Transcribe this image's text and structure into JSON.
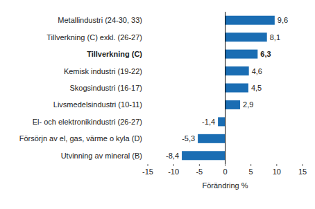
{
  "chart_data": {
    "type": "bar",
    "orientation": "horizontal",
    "x_label": "Förändring %",
    "categories": [
      "Metallindustri (24-30, 33)",
      "Tillverkning (C) exkl. (26-27)",
      "Tillverkning (C)",
      "Kemisk industri (19-22)",
      "Skogsindustri (16-17)",
      "Livsmedelsindustri (10-11)",
      "El- och elektronikindustri (26-27)",
      "Försörjn av el, gas, värme o kyla (D)",
      "Utvinning av mineral (B)"
    ],
    "values": [
      9.6,
      8.1,
      6.3,
      4.6,
      4.5,
      2.9,
      -1.4,
      -5.3,
      -8.4
    ],
    "value_labels": [
      "9,6",
      "8,1",
      "6,3",
      "4,6",
      "4,5",
      "2,9",
      "-1,4",
      "-5,3",
      "-8,4"
    ],
    "color": "#1a6db3",
    "xlim": [
      -15,
      15
    ],
    "xticks": [
      -15,
      -10,
      -5,
      0,
      5,
      10,
      15
    ],
    "data_labels": true,
    "grid": false
  }
}
